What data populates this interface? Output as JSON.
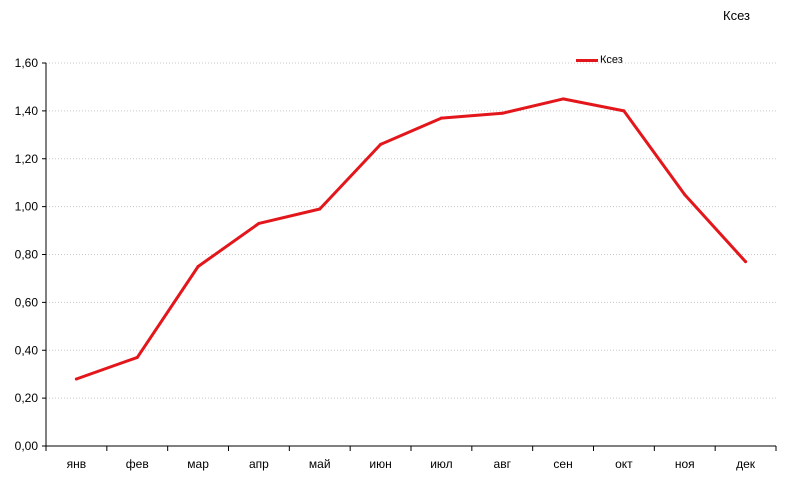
{
  "chart_data": {
    "type": "line",
    "title": "Ксез",
    "categories": [
      "янв",
      "фев",
      "мар",
      "апр",
      "май",
      "июн",
      "июл",
      "авг",
      "сен",
      "окт",
      "ноя",
      "дек"
    ],
    "series": [
      {
        "name": "Ксез",
        "values": [
          0.28,
          0.37,
          0.75,
          0.93,
          0.99,
          1.26,
          1.37,
          1.39,
          1.45,
          1.4,
          1.05,
          0.77
        ]
      }
    ],
    "yticks": [
      "0,00",
      "0,20",
      "0,40",
      "0,60",
      "0,80",
      "1,00",
      "1,20",
      "1,40",
      "1,60"
    ],
    "ylim": [
      0,
      1.6
    ],
    "ystep": 0.2,
    "grid": true,
    "legend_position": "top-right",
    "line_color": "#e3171b"
  }
}
